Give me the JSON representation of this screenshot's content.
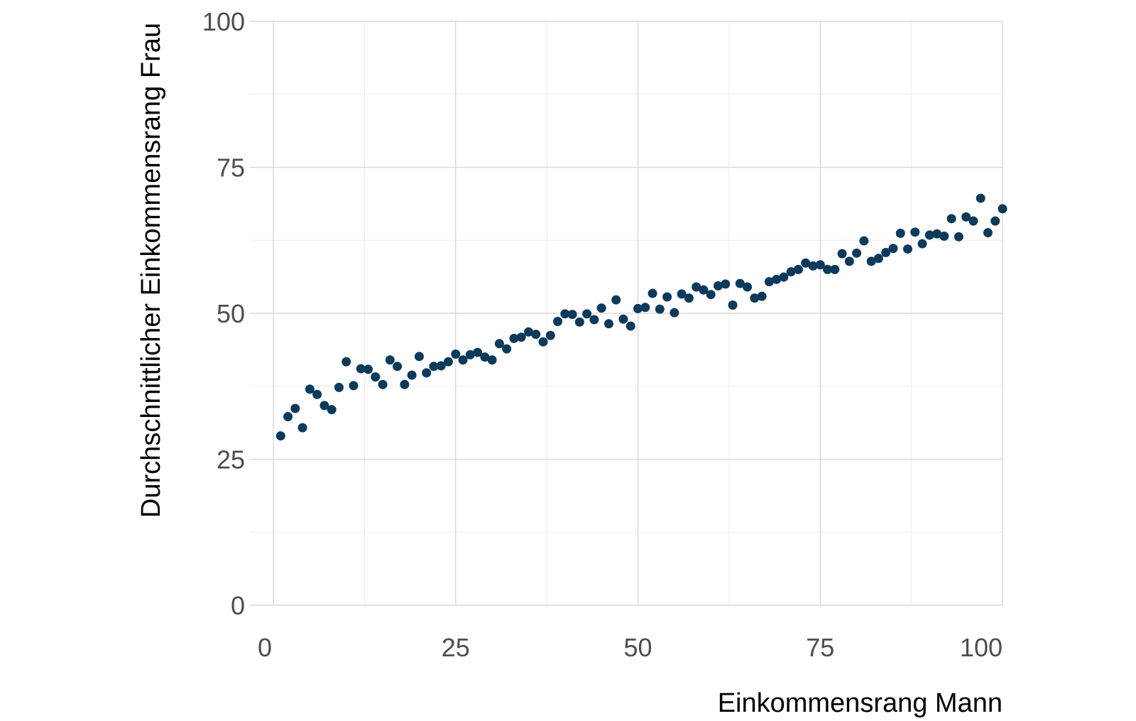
{
  "chart_data": {
    "type": "scatter",
    "title": "",
    "xlabel": "Einkommensrang Mann",
    "ylabel": "Durchschnittlicher Einkommensrang Frau",
    "xlim": [
      0,
      100
    ],
    "ylim": [
      0,
      100
    ],
    "x_ticks": [
      0,
      25,
      50,
      75,
      100
    ],
    "y_ticks": [
      0,
      25,
      50,
      75,
      100
    ],
    "grid": true,
    "legend": "none",
    "point_color": "#0c3a5b",
    "series": [
      {
        "x": [
          1,
          2,
          3,
          4,
          5,
          6,
          7,
          8,
          9,
          10,
          11,
          12,
          13,
          14,
          15,
          16,
          17,
          18,
          19,
          20,
          21,
          22,
          23,
          24,
          25,
          26,
          27,
          28,
          29,
          30,
          31,
          32,
          33,
          34,
          35,
          36,
          37,
          38,
          39,
          40,
          41,
          42,
          43,
          44,
          45,
          46,
          47,
          48,
          49,
          50,
          51,
          52,
          53,
          54,
          55,
          56,
          57,
          58,
          59,
          60,
          61,
          62,
          63,
          64,
          65,
          66,
          67,
          68,
          69,
          70,
          71,
          72,
          73,
          74,
          75,
          76,
          77,
          78,
          79,
          80,
          81,
          82,
          83,
          84,
          85,
          86,
          87,
          88,
          89,
          90,
          91,
          92,
          93,
          94,
          95,
          96,
          97,
          98,
          99,
          100
        ],
        "y": [
          29.0,
          32.3,
          33.7,
          30.4,
          37.0,
          36.1,
          34.2,
          33.5,
          37.3,
          41.7,
          37.6,
          40.5,
          40.4,
          39.1,
          37.8,
          42.0,
          40.9,
          37.8,
          39.4,
          42.6,
          39.8,
          40.9,
          41.0,
          41.7,
          43.0,
          42.0,
          42.9,
          43.3,
          42.5,
          42.0,
          44.8,
          43.9,
          45.7,
          45.9,
          46.8,
          46.4,
          45.1,
          46.2,
          48.6,
          49.9,
          49.8,
          48.5,
          49.9,
          48.9,
          50.9,
          48.2,
          52.3,
          49.0,
          47.8,
          50.8,
          51.0,
          53.4,
          50.7,
          52.8,
          50.1,
          53.3,
          52.6,
          54.5,
          54.0,
          53.2,
          54.7,
          55.0,
          51.4,
          55.1,
          54.5,
          52.6,
          52.9,
          55.4,
          55.8,
          56.2,
          57.1,
          57.5,
          58.6,
          58.1,
          58.3,
          57.5,
          57.5,
          60.2,
          58.9,
          60.3,
          62.4,
          58.9,
          59.4,
          60.4,
          61.1,
          63.7,
          61.0,
          63.9,
          61.9,
          63.4,
          63.6,
          63.2,
          66.2,
          63.1,
          66.5,
          65.8,
          69.7,
          63.8,
          65.8,
          67.9
        ]
      }
    ]
  }
}
